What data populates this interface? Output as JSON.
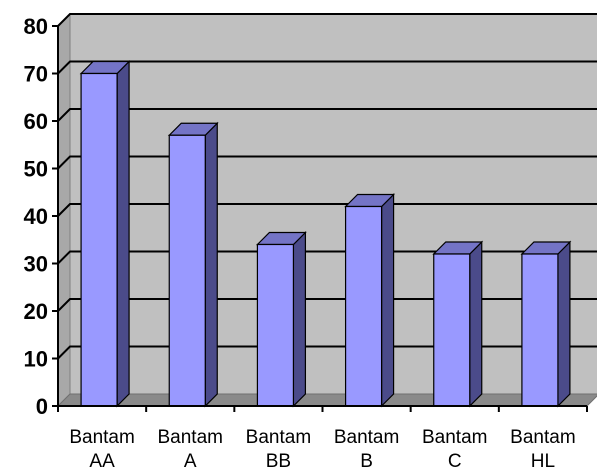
{
  "chart_data": {
    "type": "bar",
    "categories": [
      [
        "Bantam",
        "AA"
      ],
      [
        "Bantam",
        "A"
      ],
      [
        "Bantam",
        "BB"
      ],
      [
        "Bantam",
        "B"
      ],
      [
        "Bantam",
        "C"
      ],
      [
        "Bantam",
        "HL"
      ]
    ],
    "values": [
      70,
      57,
      34,
      42,
      32,
      32
    ],
    "ylim": [
      0,
      80
    ],
    "yticks": [
      0,
      10,
      20,
      30,
      40,
      50,
      60,
      70,
      80
    ],
    "grid": true,
    "legend": "none",
    "title": "",
    "xlabel": "",
    "ylabel": "",
    "colors": {
      "bar_front": "#9999ff",
      "bar_side": "#4b4b8a",
      "bar_top": "#7474c6",
      "wall": "#c0c0c0",
      "floor": "#8a8a8a",
      "gridline": "#000000"
    }
  }
}
